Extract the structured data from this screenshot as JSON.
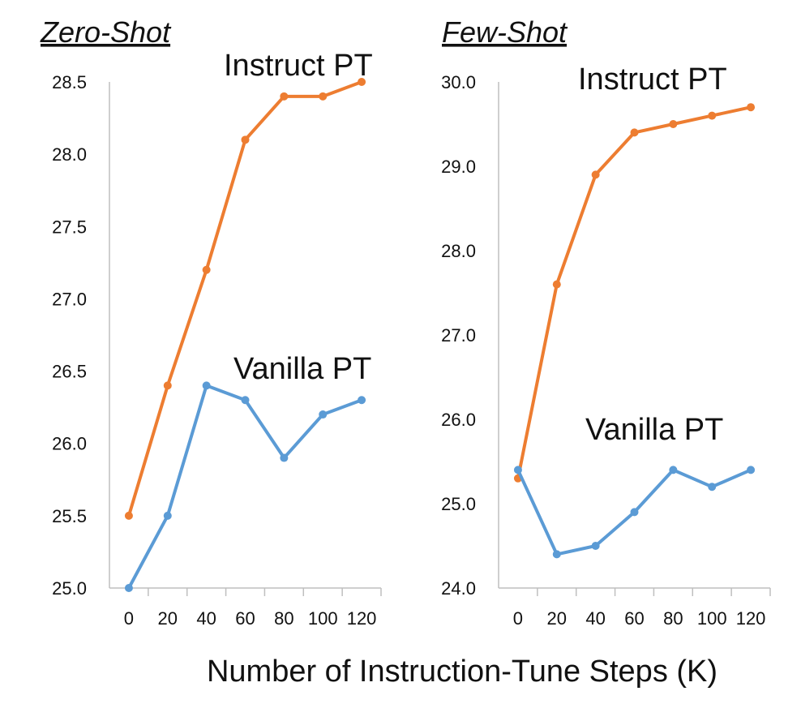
{
  "chart_data": [
    {
      "type": "line",
      "title": "Zero-Shot",
      "x": [
        0,
        20,
        40,
        60,
        80,
        100,
        120
      ],
      "xlim": [
        -10,
        130
      ],
      "xticks": [
        "0",
        "20",
        "40",
        "60",
        "80",
        "100",
        "120"
      ],
      "ylim": [
        25.0,
        28.5
      ],
      "yticks": [
        "25.0",
        "25.5",
        "26.0",
        "26.5",
        "27.0",
        "27.5",
        "28.0",
        "28.5"
      ],
      "ytick_values": [
        25.0,
        25.5,
        26.0,
        26.5,
        27.0,
        27.5,
        28.0,
        28.5
      ],
      "grid": false,
      "series": [
        {
          "name": "Instruct PT",
          "color": "#ED7D31",
          "values": [
            25.5,
            26.4,
            27.2,
            28.1,
            28.4,
            28.4,
            28.5
          ]
        },
        {
          "name": "Vanilla PT",
          "color": "#5B9BD5",
          "values": [
            25.0,
            25.5,
            26.4,
            26.3,
            25.9,
            26.2,
            26.3
          ]
        }
      ]
    },
    {
      "type": "line",
      "title": "Few-Shot",
      "x": [
        0,
        20,
        40,
        60,
        80,
        100,
        120
      ],
      "xlim": [
        -10,
        130
      ],
      "xticks": [
        "0",
        "20",
        "40",
        "60",
        "80",
        "100",
        "120"
      ],
      "ylim": [
        24.0,
        30.0
      ],
      "yticks": [
        "24.0",
        "25.0",
        "26.0",
        "27.0",
        "28.0",
        "29.0",
        "30.0"
      ],
      "ytick_values": [
        24.0,
        25.0,
        26.0,
        27.0,
        28.0,
        29.0,
        30.0
      ],
      "grid": false,
      "series": [
        {
          "name": "Instruct PT",
          "color": "#ED7D31",
          "values": [
            25.3,
            27.6,
            28.9,
            29.4,
            29.5,
            29.6,
            29.7
          ]
        },
        {
          "name": "Vanilla PT",
          "color": "#5B9BD5",
          "values": [
            25.4,
            24.4,
            24.5,
            24.9,
            25.4,
            25.2,
            25.4
          ]
        }
      ]
    }
  ],
  "xlabel": "Number of Instruction-Tune Steps (K)"
}
